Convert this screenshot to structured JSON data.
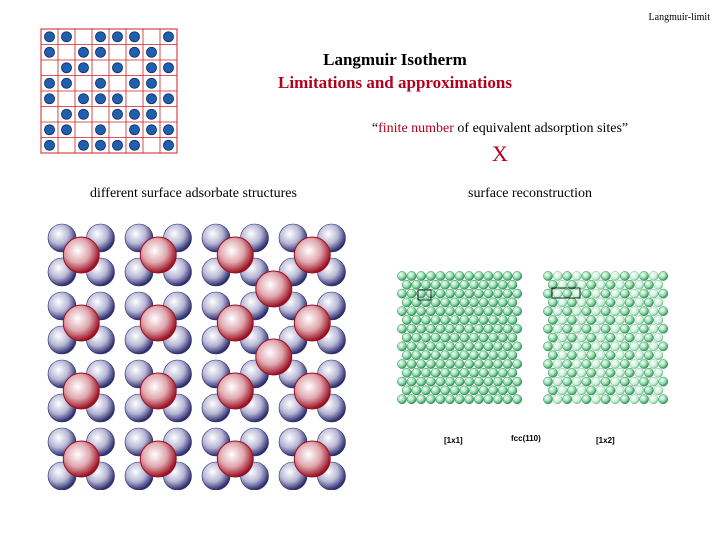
{
  "header": {
    "tag": "Langmuir-limit"
  },
  "title": "Langmuir Isotherm",
  "subtitle": "Limitations and approximations",
  "quote": {
    "open": "“",
    "highlight": "finite number",
    "rest": " of equivalent adsorption sites”"
  },
  "cross_mark": "X",
  "left_caption": "different surface adsorbate structures",
  "right_caption": "surface reconstruction",
  "figure_labels": {
    "one_by_one": "[1x1]",
    "fcc": "fcc(110)",
    "one_by_two": "[1x2]"
  },
  "colors": {
    "accent_red": "#b3001b",
    "grid_line": "#cc2222",
    "site_blue": "#1f5fae",
    "substrate_blue": "#6a6aa0",
    "adsorbate_red": "#b01a2a",
    "surface_green": "#5fbf7f"
  },
  "icons": {
    "site_grid": "lattice-grid-icon",
    "adsorbate_image": "adsorbate-structure-image",
    "reconstruction_image": "surface-reconstruction-image"
  }
}
